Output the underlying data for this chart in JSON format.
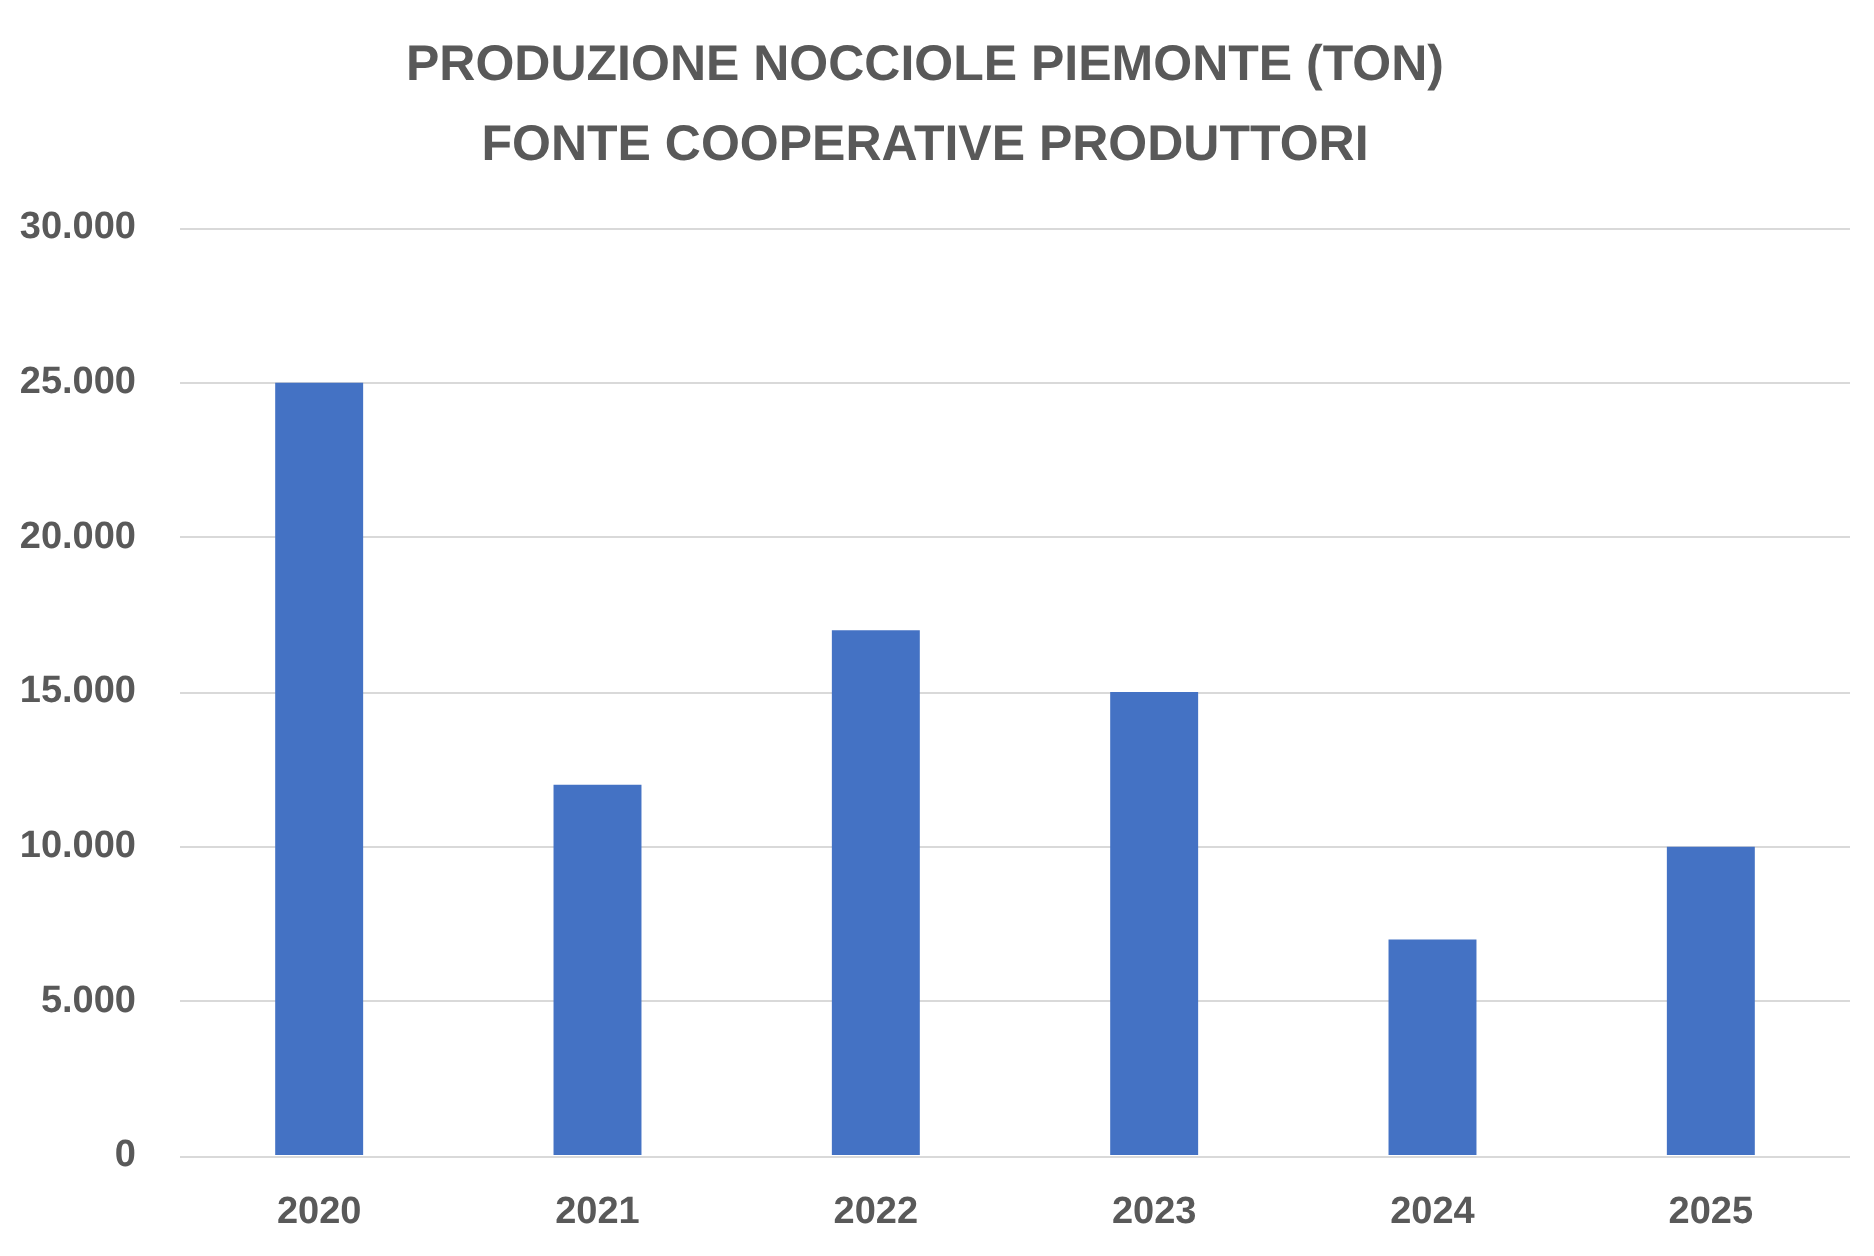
{
  "chart_data": {
    "type": "bar",
    "title": "PRODUZIONE NOCCIOLE PIEMONTE (TON)",
    "subtitle": "FONTE COOPERATIVE PRODUTTORI",
    "categories": [
      "2020",
      "2021",
      "2022",
      "2023",
      "2024",
      "2025"
    ],
    "values": [
      25000,
      12000,
      17000,
      15000,
      7000,
      10000
    ],
    "color": "#4472c4",
    "ylim": [
      0,
      30000
    ],
    "yticks": [
      {
        "value": 0,
        "label": "0"
      },
      {
        "value": 5000,
        "label": "5.000"
      },
      {
        "value": 10000,
        "label": "10.000"
      },
      {
        "value": 15000,
        "label": "15.000"
      },
      {
        "value": 20000,
        "label": "20.000"
      },
      {
        "value": 25000,
        "label": "25.000"
      },
      {
        "value": 30000,
        "label": "30.000"
      }
    ],
    "grid": "y"
  }
}
